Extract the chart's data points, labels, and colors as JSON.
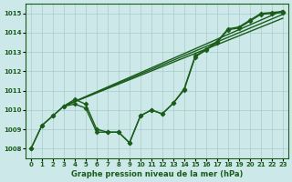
{
  "title": "Graphe pression niveau de la mer (hPa)",
  "bg_color": "#cce8e8",
  "grid_color": "#aacccc",
  "line_color": "#1a5c1a",
  "ylim": [
    1007.5,
    1015.5
  ],
  "xlim": [
    -0.5,
    23.5
  ],
  "yticks": [
    1008,
    1009,
    1010,
    1011,
    1012,
    1013,
    1014,
    1015
  ],
  "xticks": [
    0,
    1,
    2,
    3,
    4,
    5,
    6,
    7,
    8,
    9,
    10,
    11,
    12,
    13,
    14,
    15,
    16,
    17,
    18,
    19,
    20,
    21,
    22,
    23
  ],
  "x_full": [
    0,
    1,
    2,
    3,
    4,
    5,
    6,
    7,
    8,
    9,
    10,
    11,
    12,
    13,
    14,
    15,
    16,
    17,
    18,
    19,
    20,
    21,
    22,
    23
  ],
  "y_line1": [
    1008.0,
    1009.2,
    1009.7,
    1010.2,
    1010.55,
    1010.3,
    1009.0,
    1008.85,
    1008.85,
    1008.3,
    1009.7,
    1010.0,
    1009.8,
    1010.35,
    1011.1,
    1012.8,
    1013.15,
    1013.55,
    1014.2,
    1014.3,
    1014.65,
    1015.0,
    1015.05,
    1015.1
  ],
  "y_line2": [
    1008.0,
    1009.2,
    1009.7,
    1010.2,
    1010.3,
    1010.1,
    1008.85,
    1008.85,
    1008.85,
    1008.3,
    1009.7,
    1010.0,
    1009.8,
    1010.35,
    1011.05,
    1012.75,
    1013.1,
    1013.5,
    1014.15,
    1014.25,
    1014.6,
    1014.95,
    1015.0,
    1015.05
  ],
  "diag_lines": [
    {
      "x": [
        3,
        23
      ],
      "y": [
        1010.2,
        1015.15
      ]
    },
    {
      "x": [
        3,
        23
      ],
      "y": [
        1010.2,
        1014.95
      ]
    },
    {
      "x": [
        3,
        23
      ],
      "y": [
        1010.2,
        1014.75
      ]
    }
  ]
}
